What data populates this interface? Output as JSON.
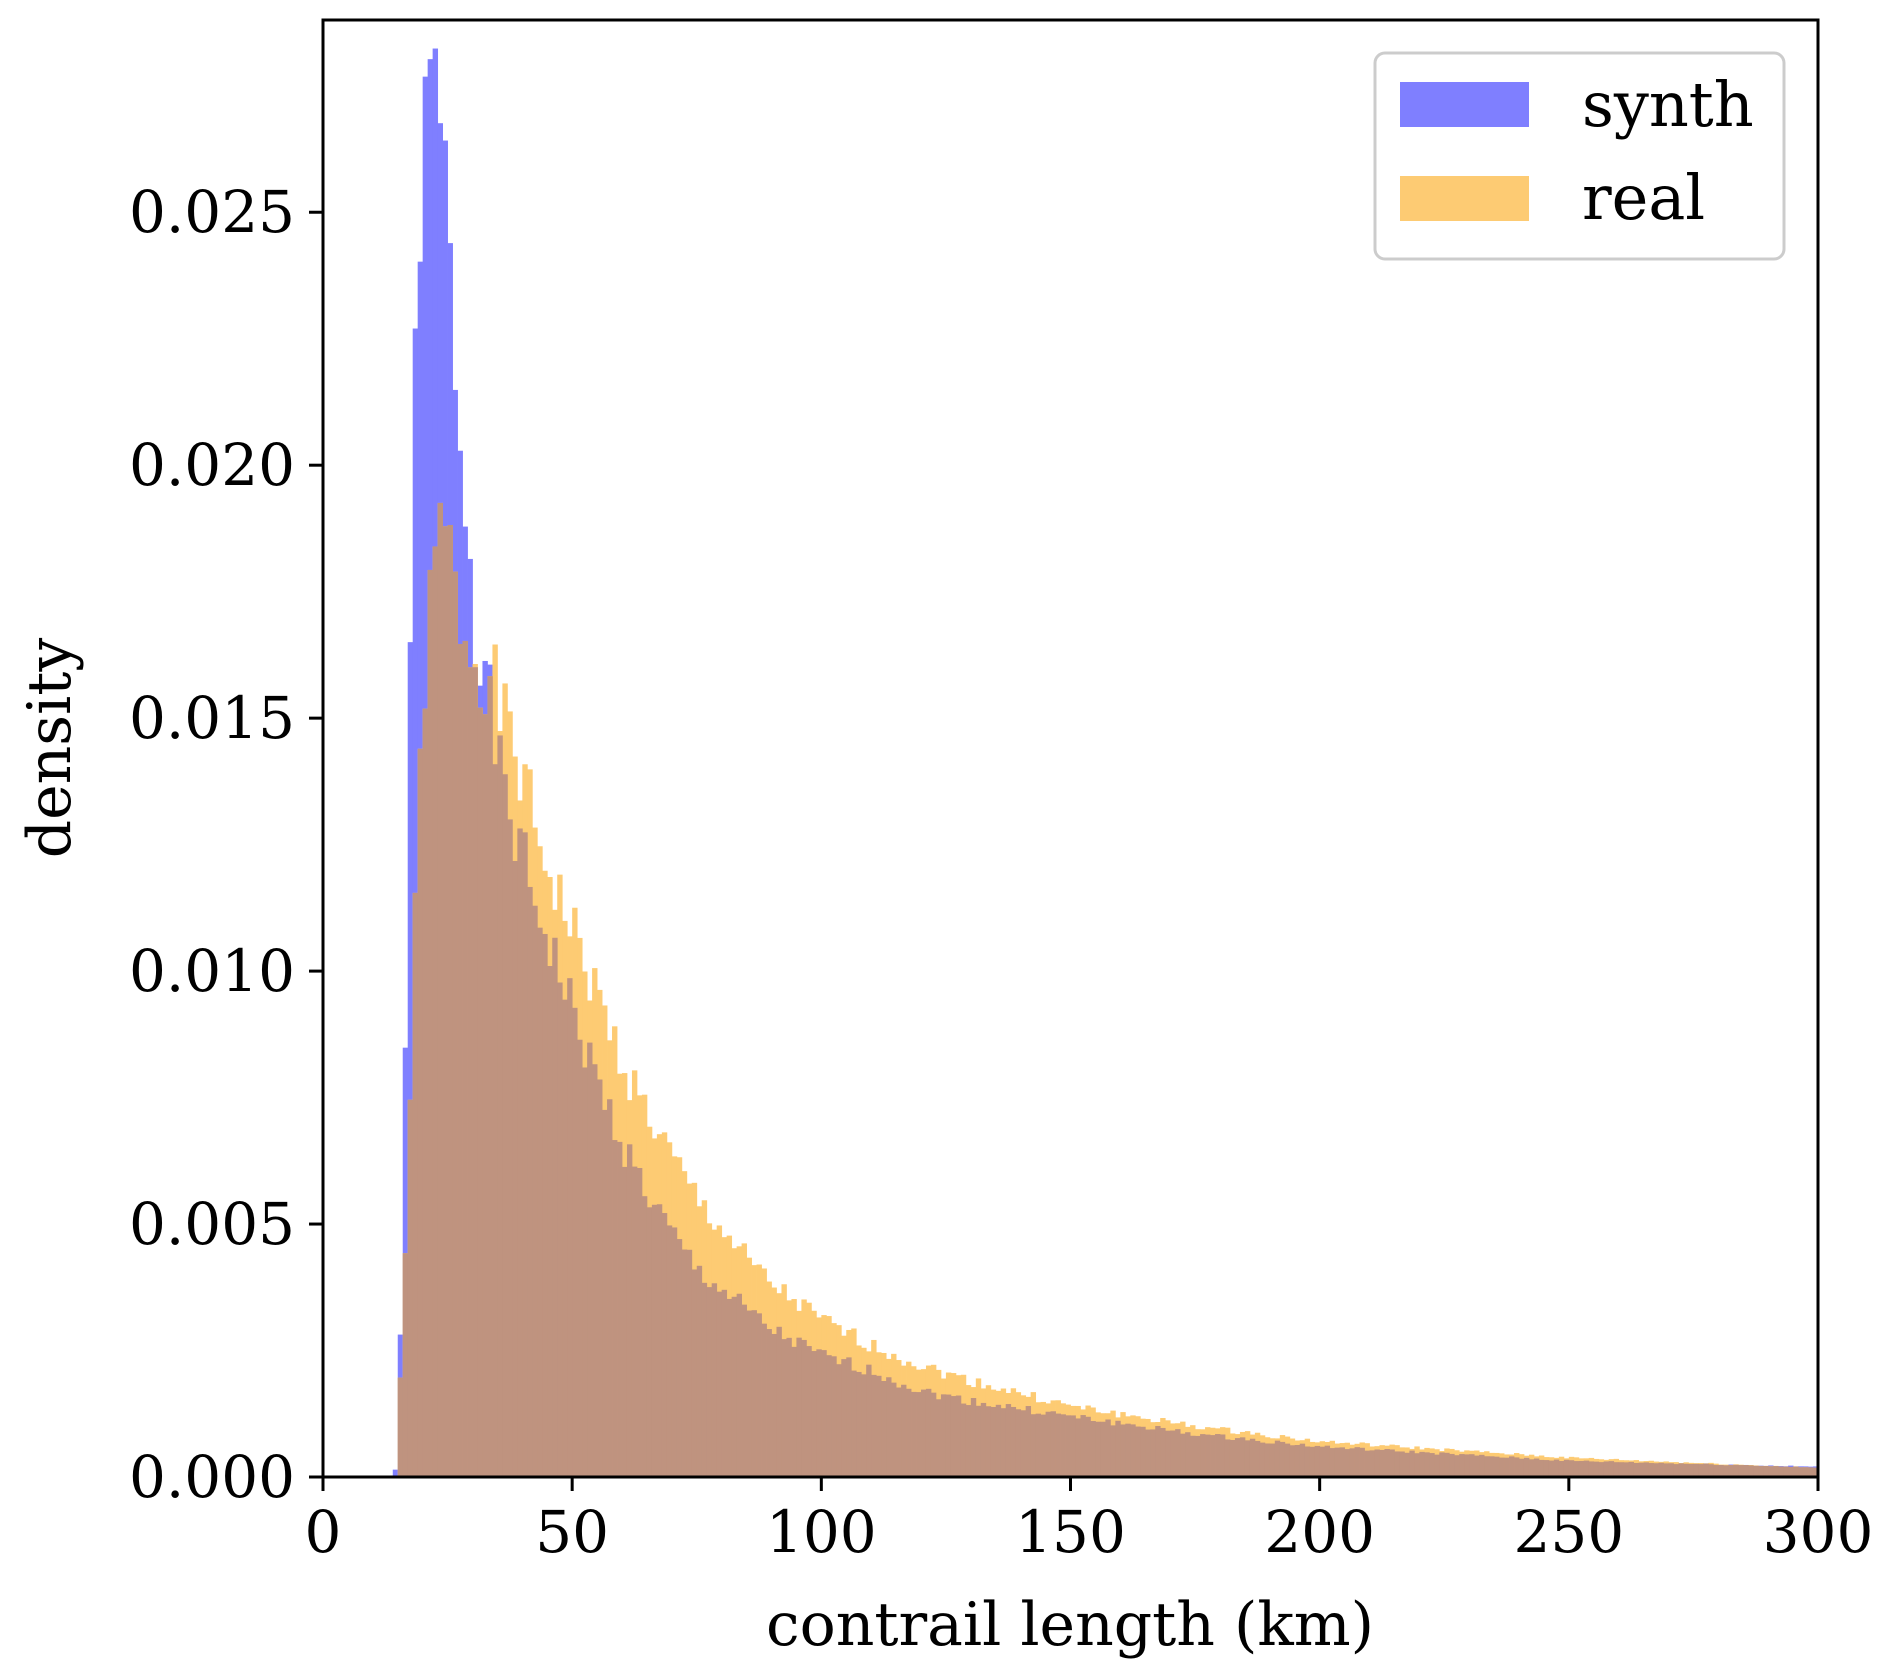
{
  "chart_data": {
    "type": "bar",
    "histogram": true,
    "title": "",
    "xlabel": "contrail length (km)",
    "ylabel": "density",
    "xlim": [
      0,
      300
    ],
    "ylim": [
      0,
      0.0288
    ],
    "grid": false,
    "legend_position": "top-right",
    "x_ticks": [
      "0",
      "50",
      "100",
      "150",
      "200",
      "250",
      "300"
    ],
    "x_tick_values": [
      0,
      50,
      100,
      150,
      200,
      250,
      300
    ],
    "y_ticks": [
      "0.000",
      "0.005",
      "0.010",
      "0.015",
      "0.020",
      "0.025"
    ],
    "y_tick_values": [
      0,
      0.005,
      0.01,
      0.015,
      0.02,
      0.025
    ],
    "series": [
      {
        "name": "synth",
        "color": "#7f7fff",
        "knots_x": [
          14,
          15,
          16,
          17,
          18,
          19,
          20,
          21,
          22,
          23,
          24,
          25,
          26,
          27,
          28,
          29,
          30,
          31,
          32,
          33,
          34,
          35,
          36,
          38,
          40,
          42,
          45,
          50,
          55,
          60,
          65,
          70,
          75,
          80,
          90,
          100,
          110,
          120,
          130,
          150,
          175,
          200,
          250,
          300
        ],
        "knots_y": [
          0.0,
          0.0003,
          0.0053,
          0.012,
          0.0193,
          0.0247,
          0.0256,
          0.0272,
          0.0275,
          0.0272,
          0.0262,
          0.0249,
          0.0228,
          0.0217,
          0.0193,
          0.0192,
          0.0175,
          0.0165,
          0.0167,
          0.0155,
          0.0148,
          0.0142,
          0.0136,
          0.0129,
          0.0122,
          0.0115,
          0.0107,
          0.0092,
          0.0078,
          0.0066,
          0.0056,
          0.0048,
          0.0041,
          0.0037,
          0.0029,
          0.0024,
          0.0021,
          0.0017,
          0.0015,
          0.0012,
          0.00085,
          0.0006,
          0.00032,
          0.0002
        ],
        "bin_start": 14,
        "bin_end": 300,
        "bin_width": 1
      },
      {
        "name": "real",
        "color": "#fdcb73",
        "knots_x": [
          14,
          16,
          17,
          18,
          19,
          20,
          21,
          22,
          23,
          24,
          25,
          26,
          27,
          28,
          29,
          30,
          32,
          34,
          36,
          38,
          40,
          42,
          45,
          50,
          55,
          60,
          65,
          70,
          75,
          80,
          85,
          90,
          100,
          110,
          120,
          130,
          150,
          175,
          200,
          250,
          300
        ],
        "knots_y": [
          0.0,
          0.0027,
          0.0061,
          0.0091,
          0.0128,
          0.0151,
          0.0167,
          0.0175,
          0.0184,
          0.0189,
          0.0186,
          0.0178,
          0.0172,
          0.0169,
          0.0165,
          0.0163,
          0.0161,
          0.0157,
          0.015,
          0.0145,
          0.0138,
          0.013,
          0.0121,
          0.0108,
          0.0095,
          0.0082,
          0.0072,
          0.0063,
          0.0055,
          0.0049,
          0.0043,
          0.0038,
          0.0031,
          0.0026,
          0.0022,
          0.0019,
          0.0014,
          0.001,
          0.0007,
          0.00038,
          0.00018
        ],
        "bin_start": 15,
        "bin_end": 300,
        "bin_width": 1
      }
    ],
    "overlap_color": "#bf937f"
  }
}
